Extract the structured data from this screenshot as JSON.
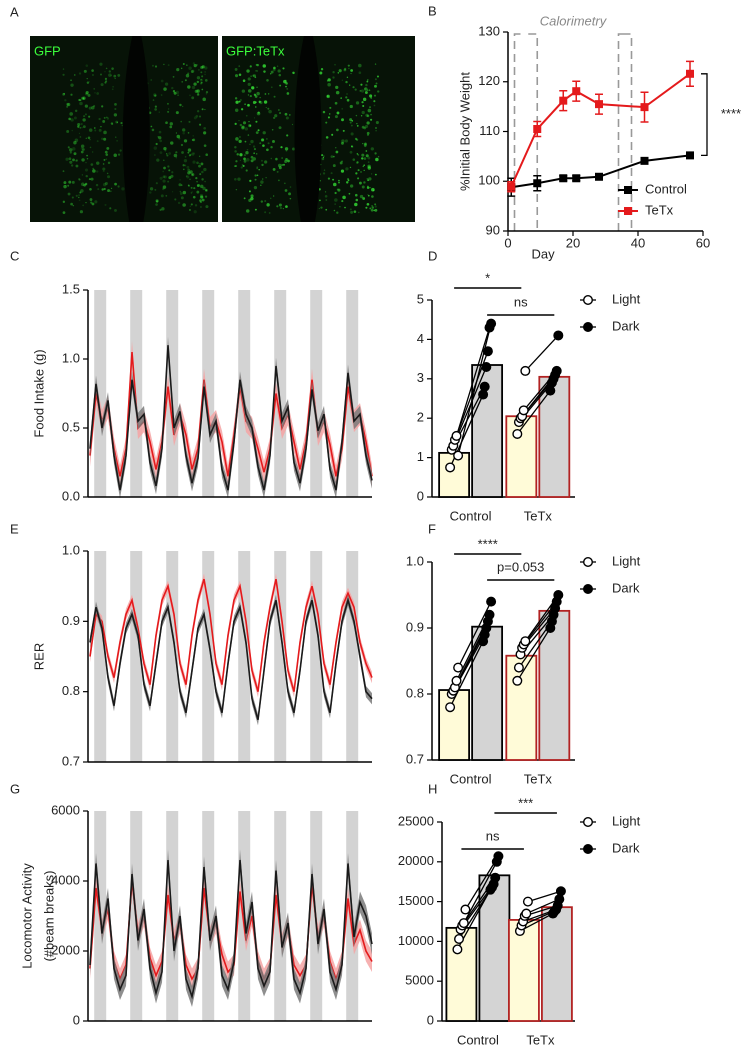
{
  "images": {
    "panel": "A",
    "labels": [
      "GFP",
      "GFP:TeTx"
    ]
  },
  "chart_data": [
    {
      "panel": "B",
      "type": "line",
      "ylabel": "%Initial Body Weight",
      "xlabel": "Day",
      "x": [
        1,
        9,
        17,
        21,
        28,
        42,
        56
      ],
      "xlim": [
        0,
        60
      ],
      "xticks": [
        0,
        20,
        40,
        60
      ],
      "ylim": [
        90,
        130
      ],
      "yticks": [
        90,
        100,
        110,
        120,
        130
      ],
      "series": [
        {
          "name": "Control",
          "color": "#000000",
          "values": [
            98.8,
            99.6,
            100.6,
            100.6,
            100.9,
            104.1,
            105.2
          ],
          "errors": [
            1.8,
            1.5,
            0.5,
            0.5,
            0.5,
            0.5,
            0.5
          ]
        },
        {
          "name": "TeTx",
          "color": "#e41a1c",
          "values": [
            98.9,
            110.5,
            116.2,
            118.1,
            115.5,
            114.9,
            121.6
          ],
          "errors": [
            1.0,
            1.5,
            2.0,
            2.0,
            2.0,
            3.0,
            2.5
          ]
        }
      ],
      "annotations": [
        {
          "text": "Calorimetry",
          "periods": [
            [
              2,
              9
            ],
            [
              34,
              38
            ]
          ]
        },
        {
          "text": "****"
        }
      ]
    },
    {
      "panel": "C",
      "type": "ribbon",
      "ylabel": "Food Intake (g)",
      "ylim": [
        0,
        1.5
      ],
      "yticks": [
        {
          "value": 0,
          "label": "0.0"
        },
        0.5,
        {
          "value": 1,
          "label": "1.0"
        },
        1.5
      ],
      "series": [
        {
          "color": "#e41a1c",
          "band_color": "#f4a3a3",
          "sem": 0.08,
          "values": [
            0.3,
            0.75,
            0.55,
            0.65,
            0.35,
            0.15,
            0.35,
            1.05,
            0.5,
            0.55,
            0.4,
            0.2,
            0.4,
            0.8,
            0.45,
            0.6,
            0.45,
            0.2,
            0.35,
            0.85,
            0.5,
            0.55,
            0.4,
            0.15,
            0.45,
            0.8,
            0.55,
            0.5,
            0.35,
            0.18,
            0.35,
            0.75,
            0.5,
            0.6,
            0.4,
            0.2,
            0.4,
            0.85,
            0.45,
            0.55,
            0.38,
            0.15,
            0.35,
            0.8,
            0.55,
            0.6,
            0.4,
            0.15
          ]
        },
        {
          "color": "#1a1a1a",
          "band_color": "#7a7a7a",
          "sem": 0.06,
          "values": [
            0.35,
            0.82,
            0.5,
            0.7,
            0.3,
            0.05,
            0.3,
            0.85,
            0.55,
            0.6,
            0.25,
            0.08,
            0.35,
            1.1,
            0.5,
            0.62,
            0.3,
            0.1,
            0.28,
            0.8,
            0.45,
            0.55,
            0.2,
            0.05,
            0.4,
            0.85,
            0.6,
            0.5,
            0.22,
            0.05,
            0.3,
            0.95,
            0.55,
            0.65,
            0.25,
            0.1,
            0.35,
            0.78,
            0.48,
            0.6,
            0.2,
            0.05,
            0.4,
            0.9,
            0.55,
            0.6,
            0.3,
            0.12
          ]
        }
      ]
    },
    {
      "panel": "D",
      "type": "bar",
      "categories": [
        "Control",
        "TeTx"
      ],
      "ylim": [
        0,
        5
      ],
      "yticks": [
        0,
        1,
        2,
        3,
        4,
        5
      ],
      "edge_colors": [
        "#000000",
        "#b22222"
      ],
      "series": [
        {
          "name": "Light",
          "color": "#fffbd8",
          "marker": "open",
          "values": [
            1.12,
            2.05
          ],
          "points": [
            [
              0.75,
              1.2,
              1.3,
              1.45,
              1.55,
              1.05
            ],
            [
              1.6,
              1.9,
              2.0,
              2.05,
              2.2,
              3.2
            ]
          ]
        },
        {
          "name": "Dark",
          "color": "#d4d4d4",
          "marker": "filled",
          "values": [
            3.35,
            3.05
          ],
          "points": [
            [
              2.6,
              2.8,
              3.3,
              3.7,
              4.3,
              4.4
            ],
            [
              2.7,
              2.9,
              3.0,
              3.1,
              3.2,
              4.1
            ]
          ]
        }
      ],
      "annotations": [
        "*",
        "ns"
      ]
    },
    {
      "panel": "E",
      "type": "ribbon",
      "ylabel": "RER",
      "ylim": [
        0.7,
        1.0
      ],
      "yticks": [
        0.7,
        0.8,
        0.9,
        {
          "value": 1.0,
          "label": "1.0"
        }
      ],
      "series": [
        {
          "color": "#e41a1c",
          "band_color": "#f4a3a3",
          "sem": 0.008,
          "values": [
            0.85,
            0.91,
            0.9,
            0.85,
            0.82,
            0.87,
            0.91,
            0.93,
            0.89,
            0.84,
            0.81,
            0.88,
            0.93,
            0.95,
            0.91,
            0.84,
            0.81,
            0.88,
            0.93,
            0.96,
            0.91,
            0.84,
            0.81,
            0.88,
            0.93,
            0.95,
            0.9,
            0.83,
            0.8,
            0.87,
            0.92,
            0.96,
            0.9,
            0.83,
            0.8,
            0.87,
            0.92,
            0.95,
            0.91,
            0.84,
            0.81,
            0.87,
            0.92,
            0.94,
            0.92,
            0.87,
            0.84,
            0.82
          ]
        },
        {
          "color": "#1a1a1a",
          "band_color": "#7a7a7a",
          "sem": 0.008,
          "values": [
            0.87,
            0.92,
            0.89,
            0.82,
            0.78,
            0.84,
            0.89,
            0.91,
            0.88,
            0.81,
            0.78,
            0.84,
            0.9,
            0.92,
            0.87,
            0.8,
            0.77,
            0.83,
            0.89,
            0.91,
            0.86,
            0.8,
            0.77,
            0.84,
            0.9,
            0.92,
            0.87,
            0.79,
            0.76,
            0.83,
            0.9,
            0.93,
            0.87,
            0.8,
            0.77,
            0.83,
            0.9,
            0.93,
            0.88,
            0.8,
            0.77,
            0.84,
            0.9,
            0.93,
            0.9,
            0.85,
            0.8,
            0.79
          ]
        }
      ]
    },
    {
      "panel": "F",
      "type": "bar",
      "categories": [
        "Control",
        "TeTx"
      ],
      "ylim": [
        0.7,
        1.0
      ],
      "yticks": [
        0.7,
        0.8,
        0.9,
        {
          "value": 1.0,
          "label": "1.0"
        }
      ],
      "edge_colors": [
        "#000000",
        "#b22222"
      ],
      "series": [
        {
          "name": "Light",
          "color": "#fffbd8",
          "marker": "open",
          "values": [
            0.806,
            0.858
          ],
          "points": [
            [
              0.78,
              0.8,
              0.805,
              0.81,
              0.82,
              0.84
            ],
            [
              0.82,
              0.84,
              0.86,
              0.87,
              0.875,
              0.88
            ]
          ]
        },
        {
          "name": "Dark",
          "color": "#d4d4d4",
          "marker": "filled",
          "values": [
            0.902,
            0.926
          ],
          "points": [
            [
              0.88,
              0.89,
              0.9,
              0.91,
              0.92,
              0.94
            ],
            [
              0.9,
              0.91,
              0.92,
              0.93,
              0.94,
              0.95
            ]
          ]
        }
      ],
      "annotations": [
        "****",
        "p=0.053"
      ]
    },
    {
      "panel": "G",
      "type": "ribbon",
      "ylabel": [
        "Locomotor Activity",
        "(#beam breaks)"
      ],
      "ylim": [
        0,
        6000
      ],
      "yticks": [
        0,
        2000,
        4000,
        6000
      ],
      "series": [
        {
          "color": "#e41a1c",
          "band_color": "#f4a3a3",
          "sem": 300,
          "values": [
            1500,
            3800,
            2600,
            3200,
            1700,
            1200,
            1600,
            4000,
            2500,
            3000,
            1800,
            1300,
            1700,
            3600,
            2300,
            2800,
            1600,
            1200,
            1500,
            3800,
            2400,
            2800,
            1900,
            1400,
            1600,
            3700,
            2300,
            3000,
            1700,
            1200,
            1500,
            3600,
            2200,
            2700,
            1600,
            1300,
            1600,
            3900,
            2400,
            3000,
            1700,
            1200,
            1700,
            3500,
            2200,
            2600,
            2000,
            1700
          ]
        },
        {
          "color": "#1a1a1a",
          "band_color": "#7a7a7a",
          "sem": 300,
          "values": [
            1600,
            4500,
            2500,
            3500,
            1500,
            900,
            1300,
            4200,
            2300,
            3200,
            1500,
            800,
            1400,
            4600,
            2000,
            3000,
            1200,
            700,
            1500,
            4400,
            2300,
            3000,
            1300,
            900,
            1700,
            4600,
            2500,
            3400,
            1500,
            1000,
            1400,
            4300,
            2100,
            2800,
            1200,
            800,
            1500,
            4200,
            2200,
            3200,
            1400,
            900,
            1600,
            4500,
            2400,
            3400,
            3000,
            2200
          ]
        }
      ]
    },
    {
      "panel": "H",
      "type": "bar",
      "categories": [
        "Control",
        "TeTx"
      ],
      "ylim": [
        0,
        25000
      ],
      "yticks": [
        0,
        5000,
        10000,
        15000,
        20000,
        25000
      ],
      "edge_colors": [
        "#000000",
        "#b22222"
      ],
      "series": [
        {
          "name": "Light",
          "color": "#fffbd8",
          "marker": "open",
          "values": [
            11700,
            12700
          ],
          "points": [
            [
              9000,
              10300,
              11500,
              12000,
              12300,
              14000
            ],
            [
              11300,
              12000,
              12500,
              13200,
              13500,
              15000
            ]
          ]
        },
        {
          "name": "Dark",
          "color": "#d4d4d4",
          "marker": "filled",
          "values": [
            18300,
            14300
          ],
          "points": [
            [
              16500,
              16800,
              17200,
              18000,
              20000,
              20700
            ],
            [
              13500,
              13800,
              14000,
              14500,
              15300,
              16300
            ]
          ]
        }
      ],
      "annotations": [
        "ns",
        "***"
      ]
    }
  ]
}
